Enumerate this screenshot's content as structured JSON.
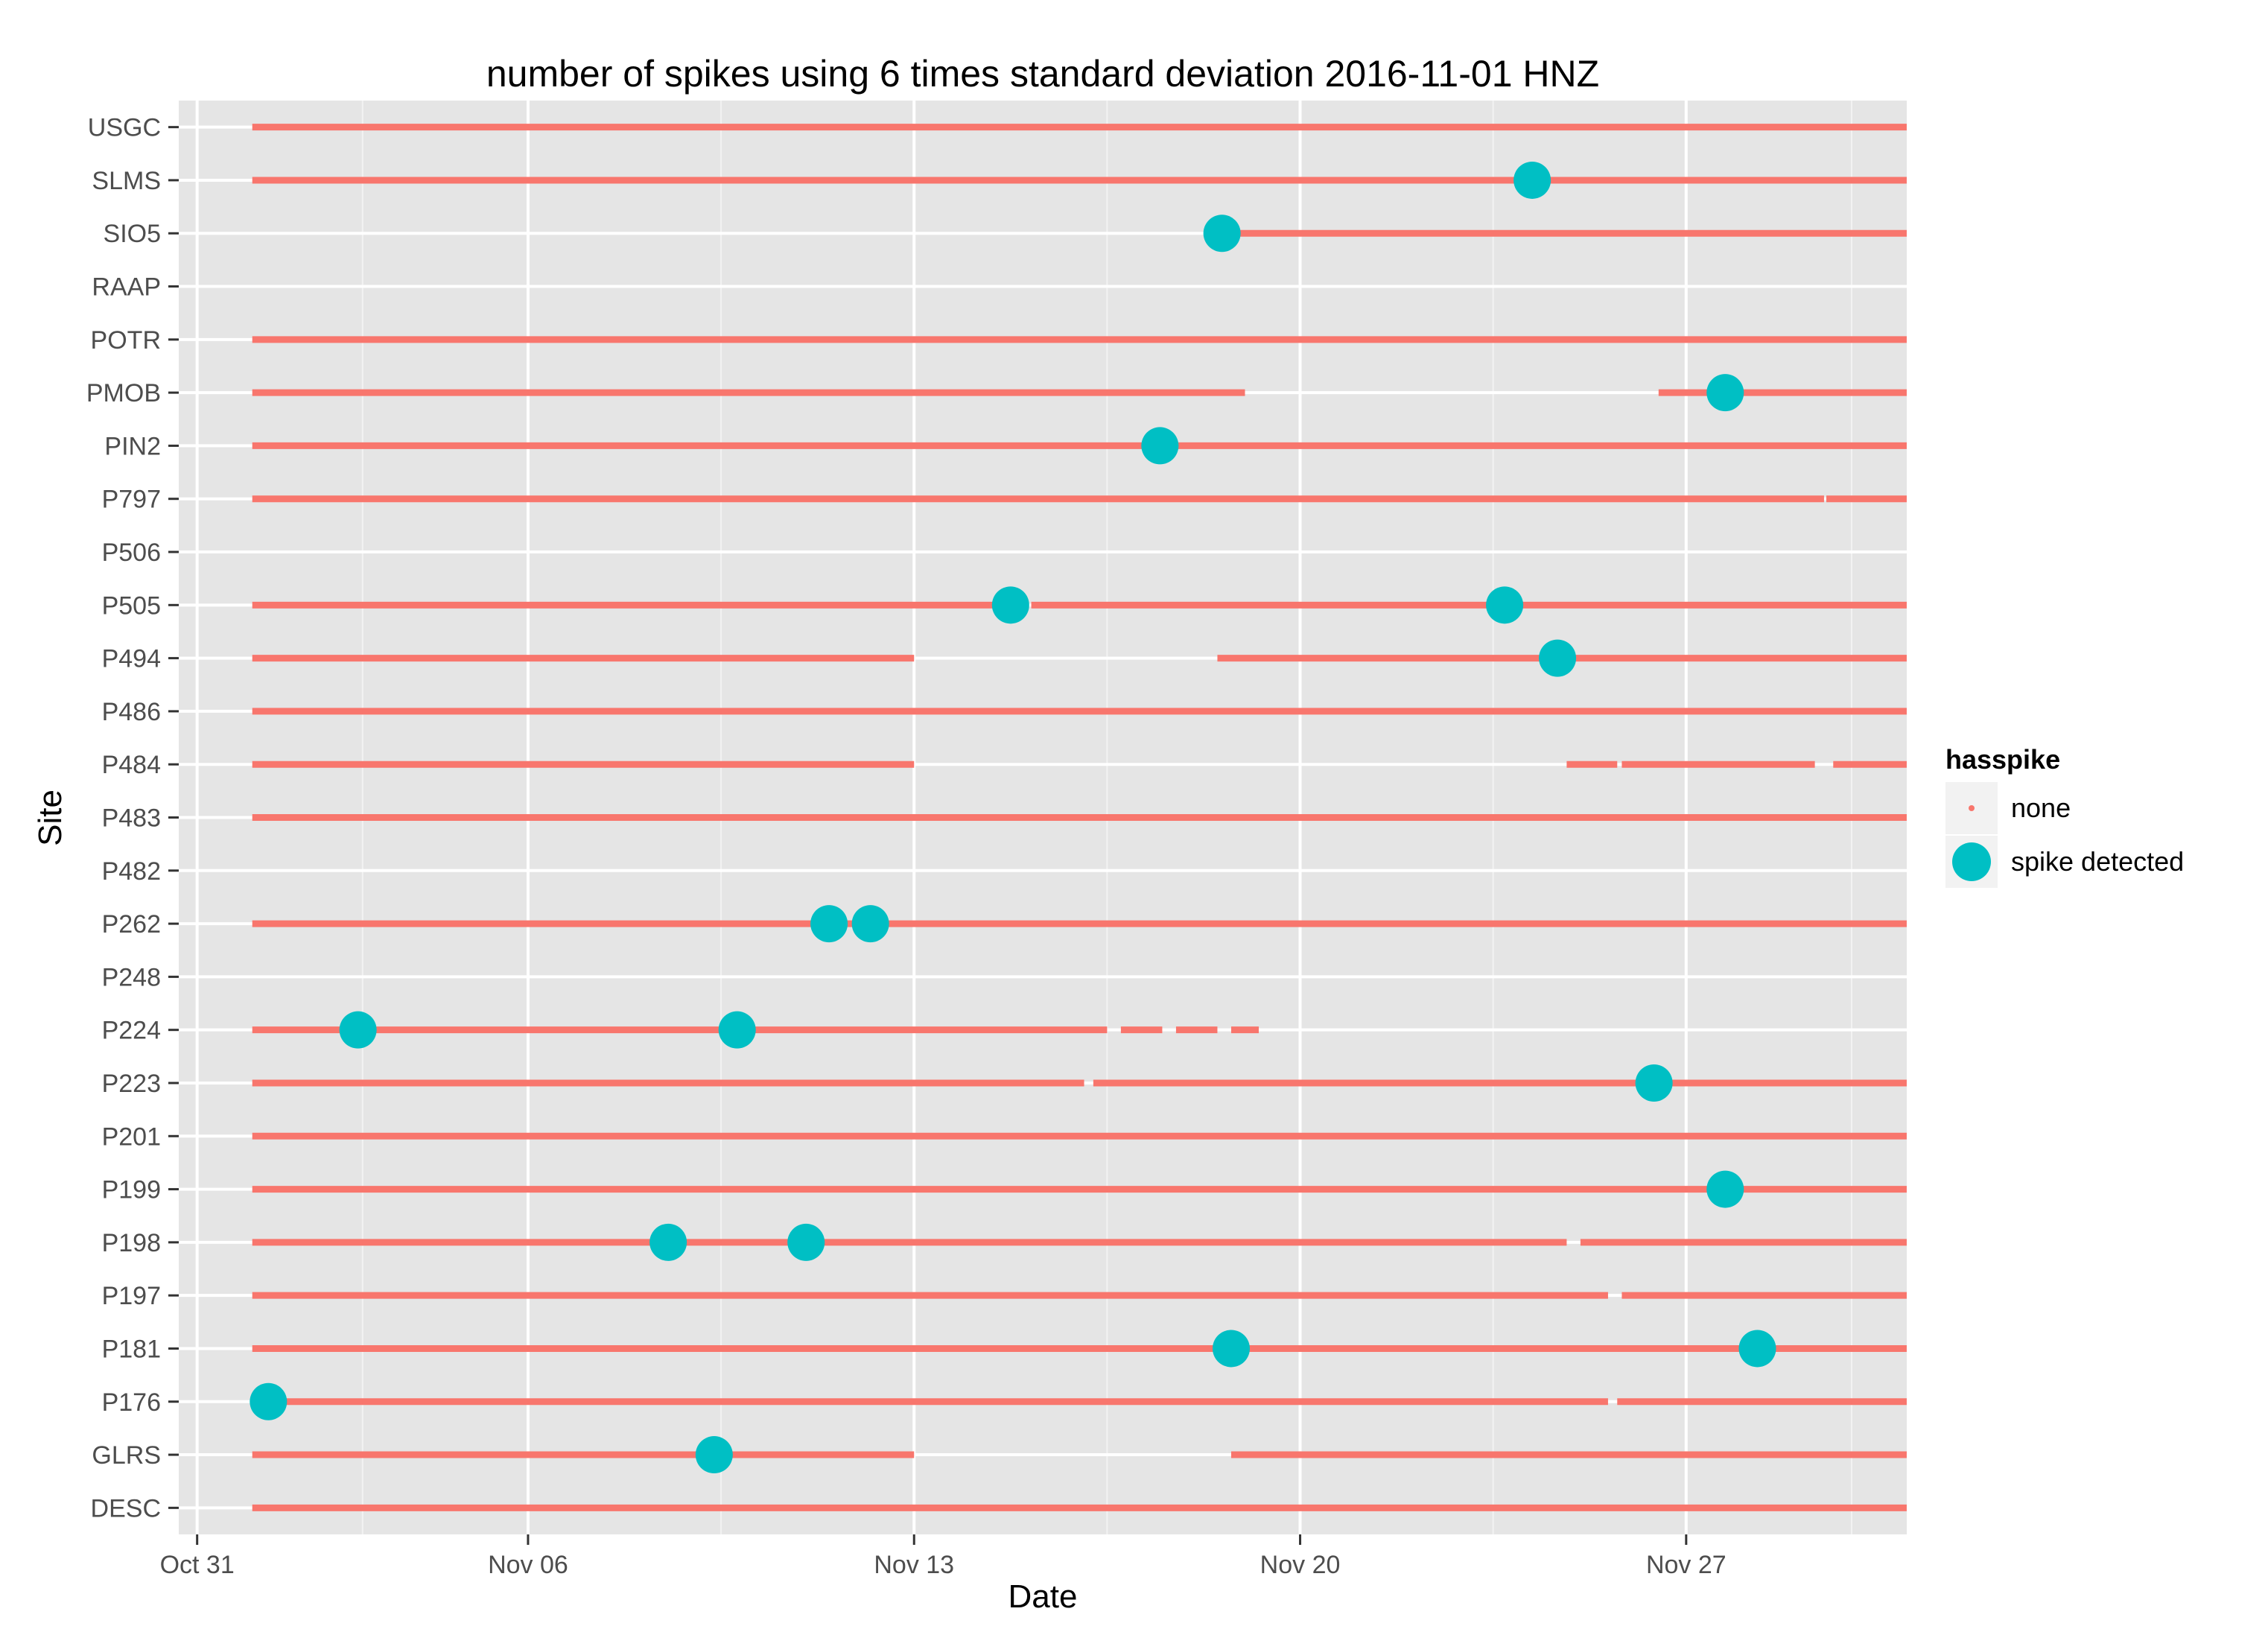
{
  "chart_data": {
    "type": "scatter",
    "title": "number of spikes using  6 times standard deviation 2016-11-01 HNZ",
    "xlabel": "Date",
    "ylabel": "Site",
    "x_unit": "date",
    "xlim": [
      "2016-10-30T16:00",
      "2016-12-01T00:00"
    ],
    "x_ticks": [
      {
        "label": "Oct 31",
        "date": "2016-10-31"
      },
      {
        "label": "Nov 06",
        "date": "2016-11-06"
      },
      {
        "label": "Nov 13",
        "date": "2016-11-13"
      },
      {
        "label": "Nov 20",
        "date": "2016-11-20"
      },
      {
        "label": "Nov 27",
        "date": "2016-11-27"
      }
    ],
    "categories": [
      "USGC",
      "SLMS",
      "SIO5",
      "RAAP",
      "POTR",
      "PMOB",
      "PIN2",
      "P797",
      "P506",
      "P505",
      "P494",
      "P486",
      "P484",
      "P483",
      "P482",
      "P262",
      "P248",
      "P224",
      "P223",
      "P201",
      "P199",
      "P198",
      "P197",
      "P181",
      "P176",
      "GLRS",
      "DESC"
    ],
    "grid": true,
    "background": "#e5e5e5",
    "legend": {
      "title": "hasspike",
      "placement": "right",
      "entries": [
        {
          "label": "none",
          "color": "#f8766d"
        },
        {
          "label": "spike detected",
          "color": "#00bfc4"
        }
      ]
    },
    "series": [
      {
        "name": "none",
        "color": "#f8766d",
        "mark": "continuous data segments (start, end)",
        "segments": {
          "USGC": [
            [
              "2016-11-01T00:00",
              "2016-11-30T23:59"
            ]
          ],
          "SLMS": [
            [
              "2016-11-01T00:00",
              "2016-11-30T23:59"
            ]
          ],
          "SIO5": [
            [
              "2016-11-18T20:00",
              "2016-11-30T23:59"
            ]
          ],
          "RAAP": [],
          "POTR": [
            [
              "2016-11-01T00:00",
              "2016-11-30T23:59"
            ]
          ],
          "PMOB": [
            [
              "2016-11-01T00:00",
              "2016-11-19T00:00"
            ],
            [
              "2016-11-26T12:00",
              "2016-11-30T23:59"
            ]
          ],
          "PIN2": [
            [
              "2016-11-01T00:00",
              "2016-11-30T23:59"
            ]
          ],
          "P797": [
            [
              "2016-11-01T00:00",
              "2016-11-29T12:00"
            ],
            [
              "2016-11-29T13:00",
              "2016-11-30T23:59"
            ]
          ],
          "P506": [],
          "P505": [
            [
              "2016-11-01T00:00",
              "2016-11-15T02:00"
            ],
            [
              "2016-11-15T03:00",
              "2016-11-30T23:59"
            ]
          ],
          "P494": [
            [
              "2016-11-01T00:00",
              "2016-11-13T00:00"
            ],
            [
              "2016-11-18T12:00",
              "2016-11-30T23:59"
            ]
          ],
          "P486": [
            [
              "2016-11-01T00:00",
              "2016-11-30T23:59"
            ]
          ],
          "P484": [
            [
              "2016-11-01T00:00",
              "2016-11-13T00:00"
            ],
            [
              "2016-11-24T20:00",
              "2016-11-25T18:00"
            ],
            [
              "2016-11-25T20:00",
              "2016-11-29T08:00"
            ],
            [
              "2016-11-29T16:00",
              "2016-11-30T23:59"
            ]
          ],
          "P483": [
            [
              "2016-11-01T00:00",
              "2016-11-30T23:59"
            ]
          ],
          "P482": [],
          "P262": [
            [
              "2016-11-01T00:00",
              "2016-11-30T23:59"
            ]
          ],
          "P248": [],
          "P224": [
            [
              "2016-11-01T00:00",
              "2016-11-16T12:00"
            ],
            [
              "2016-11-16T18:00",
              "2016-11-17T12:00"
            ],
            [
              "2016-11-17T18:00",
              "2016-11-18T12:00"
            ],
            [
              "2016-11-18T18:00",
              "2016-11-19T06:00"
            ]
          ],
          "P223": [
            [
              "2016-11-01T00:00",
              "2016-11-16T02:00"
            ],
            [
              "2016-11-16T06:00",
              "2016-11-30T23:59"
            ]
          ],
          "P201": [
            [
              "2016-11-01T00:00",
              "2016-11-30T23:59"
            ]
          ],
          "P199": [
            [
              "2016-11-01T00:00",
              "2016-11-30T23:59"
            ]
          ],
          "P198": [
            [
              "2016-11-01T00:00",
              "2016-11-24T20:00"
            ],
            [
              "2016-11-25T02:00",
              "2016-11-30T23:59"
            ]
          ],
          "P197": [
            [
              "2016-11-01T00:00",
              "2016-11-25T14:00"
            ],
            [
              "2016-11-25T20:00",
              "2016-11-30T23:59"
            ]
          ],
          "P181": [
            [
              "2016-11-01T00:00",
              "2016-11-30T23:59"
            ]
          ],
          "P176": [
            [
              "2016-11-01T00:00",
              "2016-11-25T14:00"
            ],
            [
              "2016-11-25T18:00",
              "2016-11-30T23:59"
            ]
          ],
          "GLRS": [
            [
              "2016-11-01T00:00",
              "2016-11-13T00:00"
            ],
            [
              "2016-11-18T18:00",
              "2016-11-30T23:59"
            ]
          ],
          "DESC": [
            [
              "2016-11-01T00:00",
              "2016-11-30T23:59"
            ]
          ]
        }
      },
      {
        "name": "spike detected",
        "color": "#00bfc4",
        "points": [
          {
            "site": "SLMS",
            "x": "2016-11-24T05:00"
          },
          {
            "site": "SIO5",
            "x": "2016-11-18T14:00"
          },
          {
            "site": "PMOB",
            "x": "2016-11-27T17:00"
          },
          {
            "site": "PIN2",
            "x": "2016-11-17T11:00"
          },
          {
            "site": "P505",
            "x": "2016-11-14T18:00"
          },
          {
            "site": "P505",
            "x": "2016-11-23T17:00"
          },
          {
            "site": "P494",
            "x": "2016-11-24T16:00"
          },
          {
            "site": "P262",
            "x": "2016-11-11T11:00"
          },
          {
            "site": "P262",
            "x": "2016-11-12T05:00"
          },
          {
            "site": "P224",
            "x": "2016-11-02T22:00"
          },
          {
            "site": "P224",
            "x": "2016-11-09T19:00"
          },
          {
            "site": "P223",
            "x": "2016-11-26T10:00"
          },
          {
            "site": "P199",
            "x": "2016-11-27T17:00"
          },
          {
            "site": "P198",
            "x": "2016-11-08T13:00"
          },
          {
            "site": "P198",
            "x": "2016-11-11T01:00"
          },
          {
            "site": "P181",
            "x": "2016-11-18T18:00"
          },
          {
            "site": "P181",
            "x": "2016-11-28T07:00"
          },
          {
            "site": "P176",
            "x": "2016-11-01T07:00"
          },
          {
            "site": "GLRS",
            "x": "2016-11-09T09:00"
          }
        ]
      }
    ]
  }
}
